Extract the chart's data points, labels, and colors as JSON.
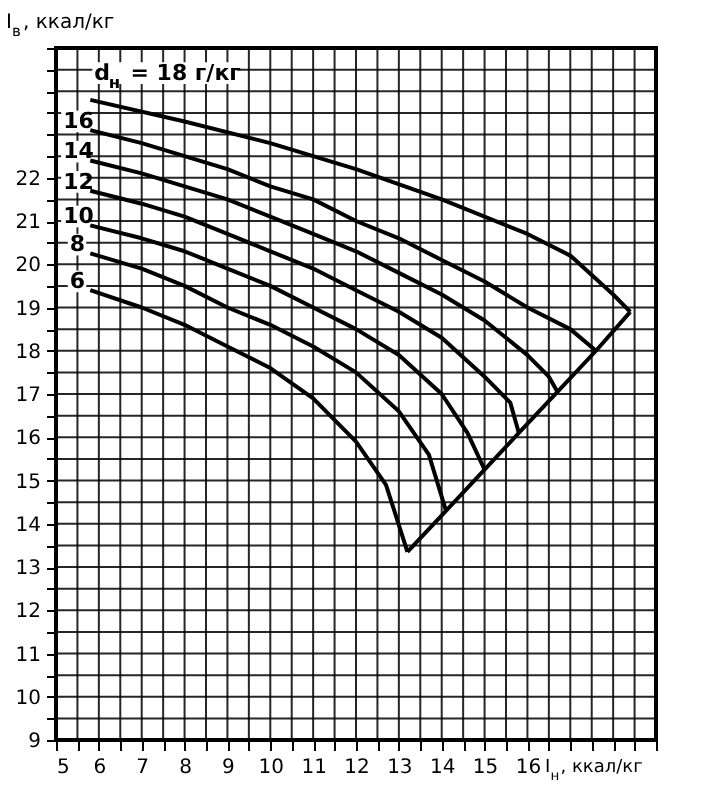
{
  "chart_data": {
    "type": "line",
    "xlabel": "I$_{н}$, ккал/кг",
    "ylabel": "I$_{в}$, ккал/кг",
    "xlim": [
      5,
      19
    ],
    "ylim": [
      9,
      25
    ],
    "xticks": [
      5,
      {
        "value": 5.5,
        "label": null
      },
      6,
      {
        "value": 6.5,
        "label": null
      },
      7,
      {
        "value": 7.5,
        "label": null
      },
      8,
      {
        "value": 8.5,
        "label": null
      },
      9,
      {
        "value": 9.5,
        "label": null
      },
      10,
      {
        "value": 10.5,
        "label": null
      },
      11,
      {
        "value": 11.5,
        "label": null
      },
      12,
      {
        "value": 12.5,
        "label": null
      },
      13,
      {
        "value": 13.5,
        "label": null
      },
      14,
      {
        "value": 14.5,
        "label": null
      },
      15,
      {
        "value": 15.5,
        "label": null
      },
      16,
      {
        "value": 16.5,
        "label": null
      },
      {
        "value": 17,
        "label": null
      },
      {
        "value": 17.5,
        "label": null
      },
      {
        "value": 18,
        "label": null
      },
      {
        "value": 18.5,
        "label": null
      },
      {
        "value": 19,
        "label": null
      }
    ],
    "yticks": [
      9,
      {
        "value": 9.5,
        "label": null
      },
      10,
      {
        "value": 10.5,
        "label": null
      },
      11,
      {
        "value": 11.5,
        "label": null
      },
      12,
      {
        "value": 12.5,
        "label": null
      },
      13,
      {
        "value": 13.5,
        "label": null
      },
      14,
      {
        "value": 14.5,
        "label": null
      },
      15,
      {
        "value": 15.5,
        "label": null
      },
      16,
      {
        "value": 16.5,
        "label": null
      },
      17,
      {
        "value": 17.5,
        "label": null
      },
      18,
      {
        "value": 18.5,
        "label": null
      },
      19,
      {
        "value": 19.5,
        "label": null
      },
      20,
      {
        "value": 20.5,
        "label": null
      },
      21,
      {
        "value": 21.5,
        "label": null
      },
      22,
      {
        "value": 22.5,
        "label": null
      },
      {
        "value": 23,
        "label": null
      },
      {
        "value": 23.5,
        "label": null
      },
      {
        "value": 24,
        "label": null
      },
      {
        "value": 24.5,
        "label": null
      },
      {
        "value": 25,
        "label": null
      }
    ],
    "grid": true,
    "marker": "none",
    "line_style": "solid",
    "series": [
      {
        "name": "d$_{н}$ = 18 г/кг",
        "color": "#000000",
        "x": [
          5.8,
          8,
          10,
          12,
          14,
          16,
          17,
          18,
          18.4
        ],
        "values": [
          23.8,
          23.3,
          22.8,
          22.2,
          21.5,
          20.7,
          20.2,
          19.3,
          18.9
        ]
      },
      {
        "name": "16",
        "color": "#000000",
        "x": [
          5.8,
          7,
          8,
          9,
          10,
          11,
          12,
          13,
          14,
          15,
          16,
          17,
          17.6
        ],
        "values": [
          23.1,
          22.8,
          22.5,
          22.2,
          21.8,
          21.5,
          21.0,
          20.6,
          20.1,
          19.6,
          19.0,
          18.5,
          18.0
        ]
      },
      {
        "name": "14",
        "color": "#000000",
        "x": [
          5.8,
          7,
          8,
          9,
          10,
          11,
          12,
          13,
          14,
          15,
          16,
          16.5,
          16.7
        ],
        "values": [
          22.4,
          22.1,
          21.8,
          21.5,
          21.1,
          20.7,
          20.3,
          19.8,
          19.3,
          18.7,
          17.9,
          17.4,
          17.05
        ]
      },
      {
        "name": "12",
        "color": "#000000",
        "x": [
          5.8,
          7,
          8,
          9,
          10,
          11,
          12,
          13,
          14,
          15,
          15.6,
          15.8
        ],
        "values": [
          21.7,
          21.4,
          21.1,
          20.7,
          20.3,
          19.9,
          19.4,
          18.9,
          18.3,
          17.4,
          16.8,
          16.1
        ]
      },
      {
        "name": "10",
        "color": "#000000",
        "x": [
          5.8,
          7,
          8,
          9,
          10,
          11,
          12,
          13,
          14,
          14.6,
          15.0
        ],
        "values": [
          20.9,
          20.6,
          20.3,
          19.9,
          19.5,
          19.0,
          18.5,
          17.9,
          17.0,
          16.1,
          15.25
        ]
      },
      {
        "name": "8",
        "color": "#000000",
        "x": [
          5.8,
          7,
          8,
          9,
          10,
          11,
          12,
          13,
          13.7,
          14.1
        ],
        "values": [
          20.25,
          19.9,
          19.5,
          19.0,
          18.6,
          18.1,
          17.5,
          16.6,
          15.6,
          14.3
        ]
      },
      {
        "name": "6",
        "color": "#000000",
        "x": [
          5.8,
          7,
          8,
          9,
          10,
          11,
          12,
          12.7,
          13.2
        ],
        "values": [
          19.4,
          19.0,
          18.6,
          18.1,
          17.6,
          16.9,
          15.9,
          14.9,
          13.35
        ]
      },
      {
        "color": "#000000",
        "x": [
          13.2,
          14.1,
          15.0,
          15.8,
          16.7,
          17.6,
          18.4
        ],
        "values": [
          13.35,
          14.3,
          15.25,
          16.1,
          17.05,
          18.0,
          18.9
        ]
      }
    ]
  }
}
